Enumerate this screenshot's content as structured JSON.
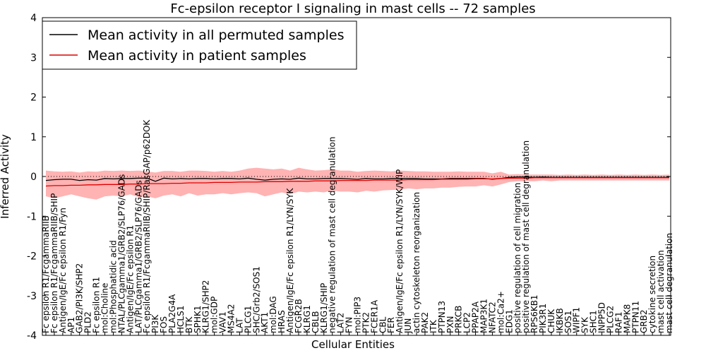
{
  "chart_data": {
    "type": "line",
    "title": "Fc-epsilon receptor I signaling in mast cells -- 72 samples",
    "xlabel": "Cellular Entities",
    "ylabel": "Inferred Activity",
    "ylim": [
      -4,
      4
    ],
    "yticks": [
      "-4",
      "-3",
      "-2",
      "-1",
      "0",
      "1",
      "2",
      "3",
      "4"
    ],
    "legend_position": "upper-left",
    "categories": [
      "Fc epsilon R1/FcgammaRIIB",
      "Fc epsilon R1/FcgammaRIIB/SHIP",
      "Antigen/IgE/Fc epsilon R1/Fyn",
      "AP1",
      "GAB2/PI3K/SHP2",
      "PLD2",
      "Fc epsilon R1",
      "mol:Choline",
      "mol:Phosphatidic acid",
      "NTAL/PLCgamma1/GRB2/SLP76/GADs",
      "Antigen/IgE/Fc epsilon R1",
      "LAT/PLCgamma1/GRB2/SLP76/GADs",
      "Fc epsilon R1/FcgammaRIIB/SHIP/RasGAP/p62DOK",
      "PI3K",
      "FOS",
      "PLA2G4A",
      "HCLS1",
      "BTK",
      "SPHK1",
      "KLRG1/SHP2",
      "mol:GDP",
      "VAV1",
      "MS4A2",
      "LAT",
      "PLCG1",
      "SHC/Grb2/SOS1",
      "AKT1",
      "mol:DAG",
      "HRAS",
      "Antigen/IgE/Fc epsilon R1/LYN/SYK",
      "FCGR2B",
      "KLRG1",
      "CBLB",
      "KLRG1/SHIP",
      "negative regulation of mast cell degranulation",
      "LAT2",
      "FYN",
      "mol:PIP3",
      "PTK2",
      "FCER1A",
      "CBL",
      "FER",
      "Antigen/IgE/Fc epsilon R1/LYN/SYK/WIP",
      "JUN",
      "actin cytoskeleton reorganization",
      "PAK2",
      "ITK",
      "PTPN13",
      "PXN",
      "PRKCB",
      "LCP2",
      "PPAP2A",
      "MAP3K1",
      "NFATC2",
      "mol:Ca2+",
      "EDG1",
      "positive regulation of cell migration",
      "positive regulation of mast cell degranulation",
      "RPS6KB1",
      "PIK3R1",
      "CHUK",
      "IKBKB",
      "SOS1",
      "WIPF1",
      "SYK",
      "SHC1",
      "INPP5D",
      "PLCG2",
      "RAF1",
      "MAPK8",
      "PTPN11",
      "GRB2",
      "cytokine secretion",
      "mast cell activation",
      "mast cell degranulation"
    ],
    "series": [
      {
        "name": "Mean activity in all permuted samples",
        "color": "#000000",
        "values": [
          -0.1,
          -0.08,
          -0.07,
          -0.07,
          -0.1,
          -0.08,
          -0.09,
          -0.05,
          -0.06,
          -0.05,
          -0.05,
          -0.04,
          -0.04,
          -0.12,
          -0.04,
          -0.06,
          -0.05,
          -0.06,
          -0.05,
          -0.05,
          -0.06,
          -0.05,
          -0.05,
          -0.06,
          -0.04,
          -0.07,
          -0.09,
          -0.07,
          -0.06,
          -0.07,
          -0.04,
          -0.06,
          -0.06,
          -0.05,
          -0.05,
          -0.05,
          -0.06,
          -0.07,
          -0.05,
          -0.06,
          -0.06,
          -0.05,
          -0.05,
          -0.05,
          -0.05,
          -0.06,
          -0.06,
          -0.06,
          -0.05,
          -0.05,
          -0.05,
          -0.05,
          -0.05,
          -0.07,
          -0.05,
          -0.02,
          -0.01,
          -0.01,
          -0.02,
          -0.01,
          -0.02,
          -0.02,
          -0.02,
          -0.02,
          -0.02,
          -0.02,
          -0.02,
          -0.02,
          -0.02,
          -0.02,
          -0.02,
          -0.02,
          -0.02,
          -0.02,
          -0.02
        ],
        "lower": [
          -0.5,
          -0.55,
          -0.5,
          -0.45,
          -0.5,
          -0.55,
          -0.58,
          -0.5,
          -0.48,
          -0.5,
          -0.45,
          -0.52,
          -0.5,
          -0.55,
          -0.48,
          -0.45,
          -0.5,
          -0.42,
          -0.48,
          -0.45,
          -0.45,
          -0.42,
          -0.45,
          -0.42,
          -0.4,
          -0.42,
          -0.5,
          -0.45,
          -0.4,
          -0.45,
          -0.38,
          -0.4,
          -0.38,
          -0.4,
          -0.35,
          -0.38,
          -0.38,
          -0.4,
          -0.36,
          -0.38,
          -0.35,
          -0.34,
          -0.33,
          -0.3,
          -0.32,
          -0.3,
          -0.3,
          -0.28,
          -0.28,
          -0.26,
          -0.25,
          -0.25,
          -0.22,
          -0.25,
          -0.2,
          -0.14,
          -0.12,
          -0.12,
          -0.12,
          -0.1,
          -0.12,
          -0.1,
          -0.1,
          -0.1,
          -0.1,
          -0.1,
          -0.1,
          -0.1,
          -0.1,
          -0.1,
          -0.1,
          -0.1,
          -0.1,
          -0.1,
          -0.1
        ],
        "upper": [
          0.15,
          0.13,
          0.12,
          0.13,
          0.1,
          0.13,
          0.12,
          0.15,
          0.14,
          0.15,
          0.14,
          0.15,
          0.13,
          0.1,
          0.14,
          0.14,
          0.12,
          0.15,
          0.15,
          0.14,
          0.12,
          0.14,
          0.12,
          0.15,
          0.2,
          0.22,
          0.2,
          0.18,
          0.2,
          0.15,
          0.22,
          0.18,
          0.15,
          0.16,
          0.18,
          0.15,
          0.15,
          0.12,
          0.14,
          0.15,
          0.14,
          0.13,
          0.15,
          0.14,
          0.13,
          0.13,
          0.12,
          0.12,
          0.12,
          0.13,
          0.12,
          0.12,
          0.12,
          0.08,
          0.12,
          0.05,
          0.06,
          0.05,
          0.05,
          0.05,
          0.05,
          0.04,
          0.05,
          0.04,
          0.05,
          0.04,
          0.05,
          0.04,
          0.05,
          0.04,
          0.05,
          0.04,
          0.05,
          0.04,
          0.05
        ]
      },
      {
        "name": "Mean activity in patient samples",
        "color": "#dd0000",
        "values": [
          -0.24,
          -0.23,
          -0.23,
          -0.22,
          -0.22,
          -0.21,
          -0.21,
          -0.2,
          -0.2,
          -0.2,
          -0.19,
          -0.19,
          -0.18,
          -0.18,
          -0.18,
          -0.17,
          -0.17,
          -0.16,
          -0.16,
          -0.16,
          -0.15,
          -0.15,
          -0.15,
          -0.14,
          -0.14,
          -0.14,
          -0.13,
          -0.13,
          -0.13,
          -0.12,
          -0.12,
          -0.12,
          -0.11,
          -0.11,
          -0.11,
          -0.1,
          -0.1,
          -0.1,
          -0.1,
          -0.09,
          -0.09,
          -0.09,
          -0.09,
          -0.08,
          -0.08,
          -0.08,
          -0.08,
          -0.07,
          -0.07,
          -0.07,
          -0.07,
          -0.06,
          -0.06,
          -0.06,
          -0.05,
          -0.04,
          -0.04,
          -0.04,
          -0.03,
          -0.03,
          -0.03,
          -0.03,
          -0.03,
          -0.03,
          -0.03,
          -0.03,
          -0.03,
          -0.03,
          -0.03,
          -0.03,
          -0.03,
          -0.03,
          -0.03,
          -0.03,
          -0.03
        ]
      }
    ],
    "band_color": "#ff9999",
    "zero_line": "dotted"
  }
}
